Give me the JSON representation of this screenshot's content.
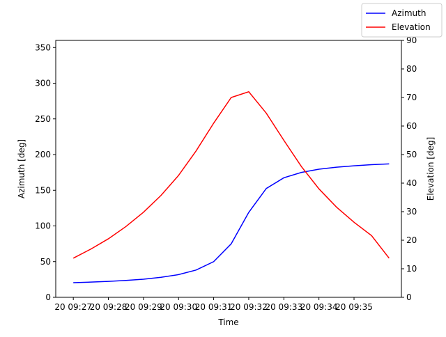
{
  "chart_data": {
    "type": "line",
    "xlabel": "Time",
    "ylabel_left": "Azimuth [deg]",
    "ylabel_right": "Elevation [deg]",
    "x_ticks": [
      "20 09:27",
      "20 09:28",
      "20 09:29",
      "20 09:30",
      "20 09:31",
      "20 09:32",
      "20 09:33",
      "20 09:34",
      "20 09:35"
    ],
    "x_minutes": [
      0,
      0.5,
      1,
      1.5,
      2,
      2.5,
      3,
      3.5,
      4,
      4.5,
      5,
      5.5,
      6,
      6.5,
      7,
      7.5,
      8,
      8.5,
      9
    ],
    "x_range_minutes": [
      -0.5,
      9.35
    ],
    "ylim_left": [
      0,
      360
    ],
    "yticks_left": [
      0,
      50,
      100,
      150,
      200,
      250,
      300,
      350
    ],
    "ylim_right": [
      0,
      90
    ],
    "yticks_right": [
      0,
      10,
      20,
      30,
      40,
      50,
      60,
      70,
      80,
      90
    ],
    "grid": false,
    "legend_position": "top-right (outside)",
    "series": [
      {
        "name": "Azimuth",
        "axis": "left",
        "color": "#0000ff",
        "values": [
          20.5,
          21.3,
          22.3,
          23.6,
          25.4,
          28.0,
          31.8,
          38.2,
          50.0,
          75.0,
          119.0,
          152.5,
          167.5,
          175.0,
          179.5,
          182.3,
          184.3,
          185.8,
          187.0
        ]
      },
      {
        "name": "Elevation",
        "axis": "right",
        "color": "#ff0000",
        "values": [
          13.7,
          16.9,
          20.5,
          24.8,
          29.8,
          35.7,
          42.7,
          51.3,
          61.0,
          70.0,
          72.0,
          64.5,
          55.0,
          45.8,
          38.0,
          31.6,
          26.3,
          21.6,
          13.7
        ]
      }
    ]
  }
}
